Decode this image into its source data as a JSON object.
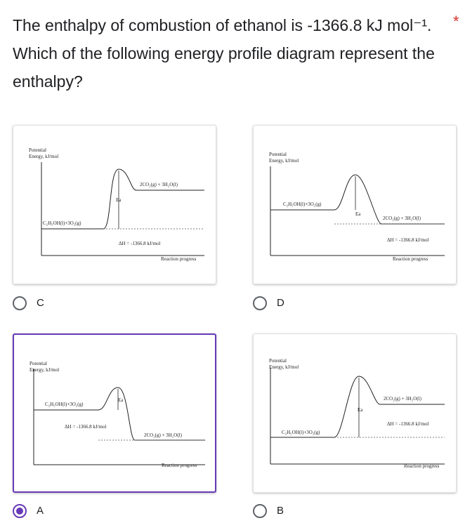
{
  "question": {
    "text": "The enthalpy of combustion of ethanol is -1366.8 kJ mol⁻¹. Which of the following energy profile diagram represent the enthalpy?",
    "required_mark": "*"
  },
  "options": [
    {
      "label": "C",
      "selected": false,
      "diagram": {
        "y_label_1": "Potential",
        "y_label_2": "Energy, kJ/mol",
        "reactants": "C₂H₅OH(l)+3O₂(g)",
        "products": "2CO₂(g) + 3H₂O(l)",
        "ea": "Ea",
        "delta_h": "ΔH = -1366.8 kJ/mol",
        "x_label": "Reaction progress"
      }
    },
    {
      "label": "D",
      "selected": false,
      "diagram": {
        "y_label_1": "Potential",
        "y_label_2": "Energy, kJ/mol",
        "reactants": "C₂H₅OH(l)+3O₂(g)",
        "products": "2CO₂(g) + 3H₂O(l)",
        "ea": "Ea",
        "delta_h": "ΔH = -1366.8 kJ/mol",
        "x_label": "Reaction progress"
      }
    },
    {
      "label": "A",
      "selected": true,
      "diagram": {
        "y_label_1": "Potential",
        "y_label_2": "Energy, kJ/mol",
        "reactants": "C₂H₅OH(l)+3O₂(g)",
        "products": "2CO₂(g) + 3H₂O(l)",
        "ea": "Ea",
        "delta_h": "ΔH = -1366.8 kJ/mol",
        "x_label": "Reaction progress"
      }
    },
    {
      "label": "B",
      "selected": false,
      "diagram": {
        "y_label_1": "Potential",
        "y_label_2": "Energy, kJ/mol",
        "reactants": "C₂H₅OH(l)+3O₂(g)",
        "products": "2CO₂(g) + 3H₂O(l)",
        "ea": "Ea",
        "delta_h": "ΔH = -1366.8 kJ/mol",
        "x_label": "Reaction progress"
      }
    }
  ]
}
